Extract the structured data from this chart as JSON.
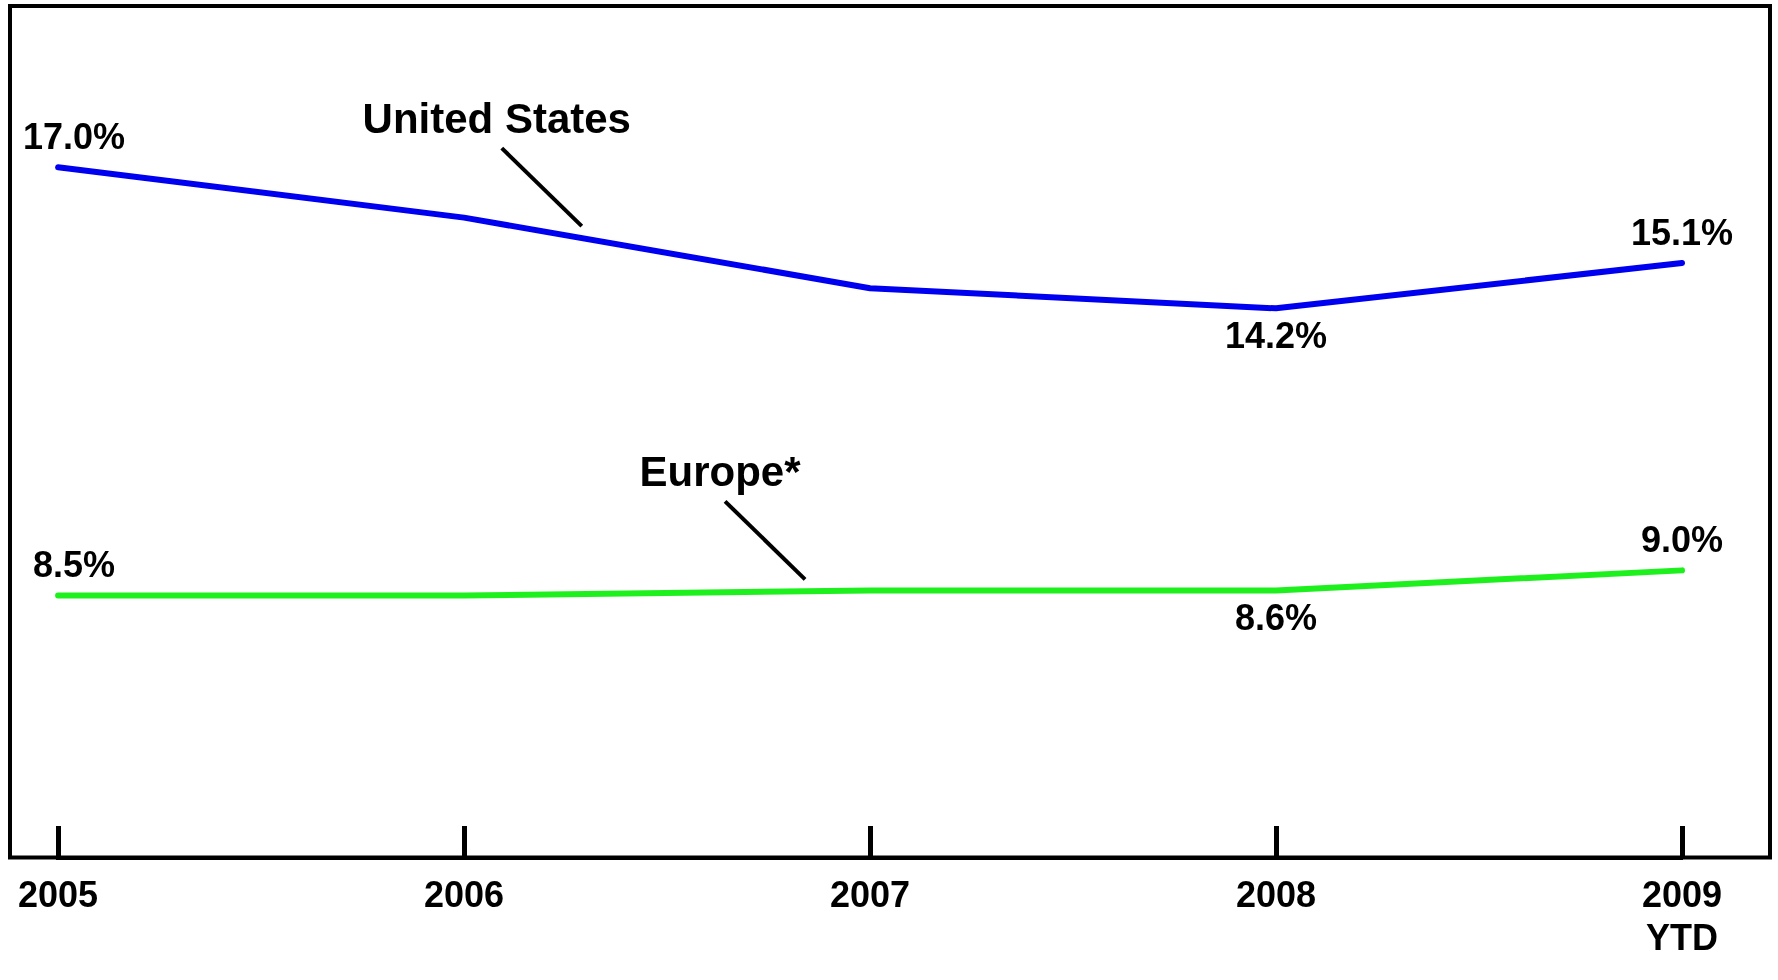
{
  "chart_data": {
    "type": "line",
    "categories": [
      "2005",
      "2006",
      "2007",
      "2008",
      "2009 YTD"
    ],
    "ylim": [
      3.3,
      20.2
    ],
    "tick_labels": "x",
    "marker": "none",
    "series": [
      {
        "name": "United States",
        "color": "#0000f0",
        "values": [
          17.0,
          16.0,
          14.6,
          14.2,
          15.1
        ],
        "value_labels": [
          "17.0%",
          null,
          null,
          "14.2%",
          "15.1%"
        ]
      },
      {
        "name": "Europe*",
        "color": "#1ef01e",
        "values": [
          8.5,
          8.5,
          8.6,
          8.6,
          9.0
        ],
        "value_labels": [
          "8.5%",
          null,
          null,
          "8.6%",
          "9.0%"
        ]
      }
    ]
  }
}
